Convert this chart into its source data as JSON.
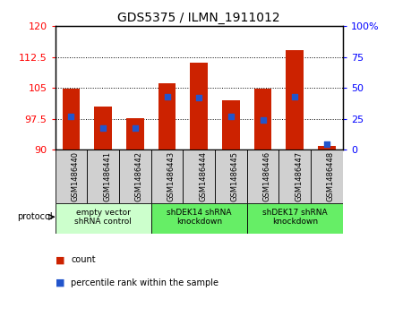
{
  "title": "GDS5375 / ILMN_1911012",
  "samples": [
    "GSM1486440",
    "GSM1486441",
    "GSM1486442",
    "GSM1486443",
    "GSM1486444",
    "GSM1486445",
    "GSM1486446",
    "GSM1486447",
    "GSM1486448"
  ],
  "count_values": [
    104.8,
    100.5,
    97.7,
    106.2,
    111.2,
    102.0,
    104.8,
    114.2,
    91.0
  ],
  "percentile_values": [
    27,
    18,
    18,
    43,
    42,
    27,
    24,
    43,
    5
  ],
  "ylim_left": [
    90,
    120
  ],
  "ylim_right": [
    0,
    100
  ],
  "yticks_left": [
    90,
    97.5,
    105,
    112.5,
    120
  ],
  "yticks_right": [
    0,
    25,
    50,
    75,
    100
  ],
  "bar_color": "#cc2200",
  "dot_color": "#2255cc",
  "protocol_groups": [
    {
      "label": "empty vector\nshRNA control",
      "start": 0,
      "end": 2,
      "color": "#ccffcc"
    },
    {
      "label": "shDEK14 shRNA\nknockdown",
      "start": 3,
      "end": 5,
      "color": "#66ee66"
    },
    {
      "label": "shDEK17 shRNA\nknockdown",
      "start": 6,
      "end": 8,
      "color": "#66ee66"
    }
  ],
  "legend_count_label": "count",
  "legend_pct_label": "percentile rank within the sample",
  "protocol_label": "protocol"
}
